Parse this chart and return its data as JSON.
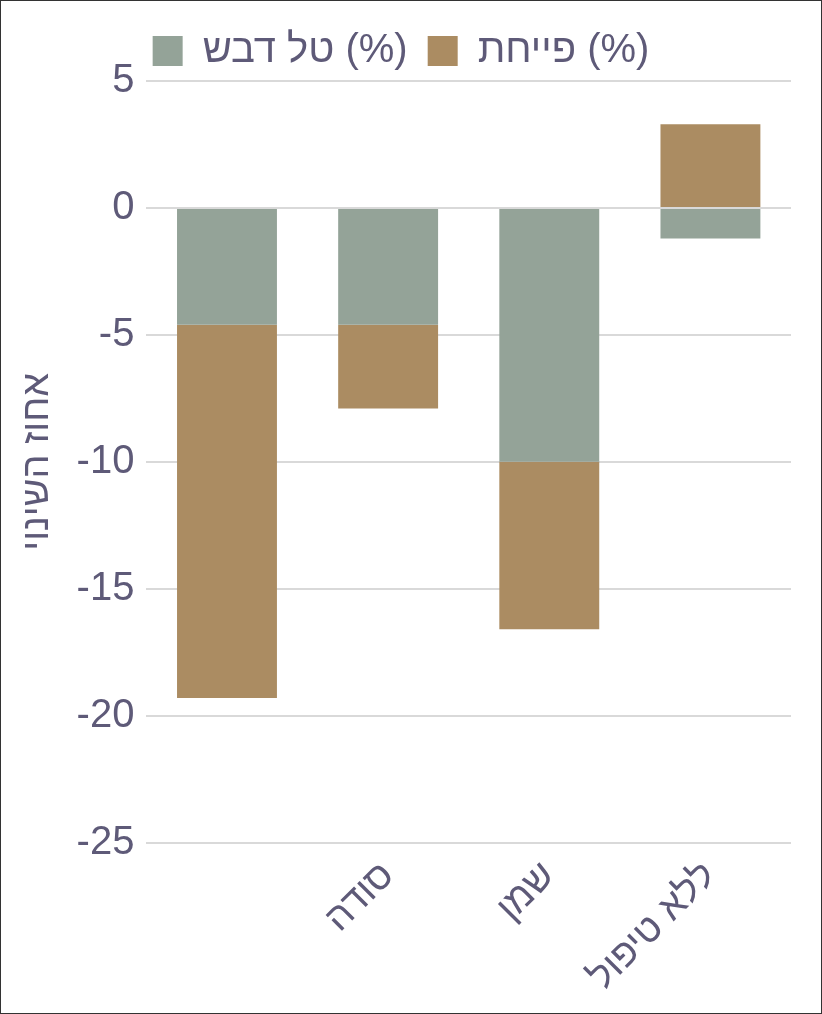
{
  "chart_data": {
    "type": "bar",
    "stacked": true,
    "categories": [
      null,
      "סודה",
      "שמן",
      "ללא טיפול"
    ],
    "series": [
      {
        "name": "טל דבש (%)",
        "color": "#94a398",
        "values": [
          -4.6,
          -4.6,
          -10,
          -1.2
        ]
      },
      {
        "name": "פייחת (%)",
        "color": "#ab8c62",
        "values": [
          -14.7,
          -3.3,
          -6.6,
          3.3
        ]
      }
    ],
    "ylabel": "אחוז השינוי",
    "ylim": [
      -25,
      5
    ],
    "yticks": [
      -25,
      -20,
      -15,
      -10,
      -5,
      0,
      5
    ],
    "grid": "y",
    "legend": "top"
  }
}
